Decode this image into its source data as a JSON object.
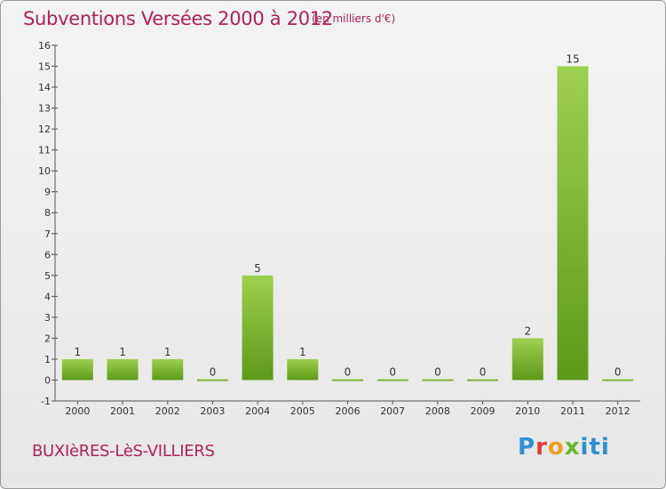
{
  "header": {
    "title": "Subventions Versées 2000 à 2012",
    "subtitle": "(en milliers d'€)"
  },
  "footer": {
    "commune": "BUXIèRES-LèS-VILLIERS",
    "logo": [
      "P",
      "r",
      "o",
      "x",
      "iti"
    ]
  },
  "colors": {
    "bar_top": "#9ed04f",
    "bar_bottom": "#5c9a17",
    "text_accent": "#b0205a"
  },
  "chart_data": {
    "type": "bar",
    "title": "Subventions Versées 2000 à 2012",
    "subtitle": "(en milliers d'€)",
    "categories": [
      "2000",
      "2001",
      "2002",
      "2003",
      "2004",
      "2005",
      "2006",
      "2007",
      "2008",
      "2009",
      "2010",
      "2011",
      "2012"
    ],
    "values": [
      1,
      1,
      1,
      0,
      5,
      1,
      0,
      0,
      0,
      0,
      2,
      15,
      0
    ],
    "ylim": [
      -1,
      16
    ],
    "yticks": [
      -1,
      0,
      1,
      2,
      3,
      4,
      5,
      6,
      7,
      8,
      9,
      10,
      11,
      12,
      13,
      14,
      15,
      16
    ],
    "grid": false,
    "xlabel": "",
    "ylabel": ""
  }
}
